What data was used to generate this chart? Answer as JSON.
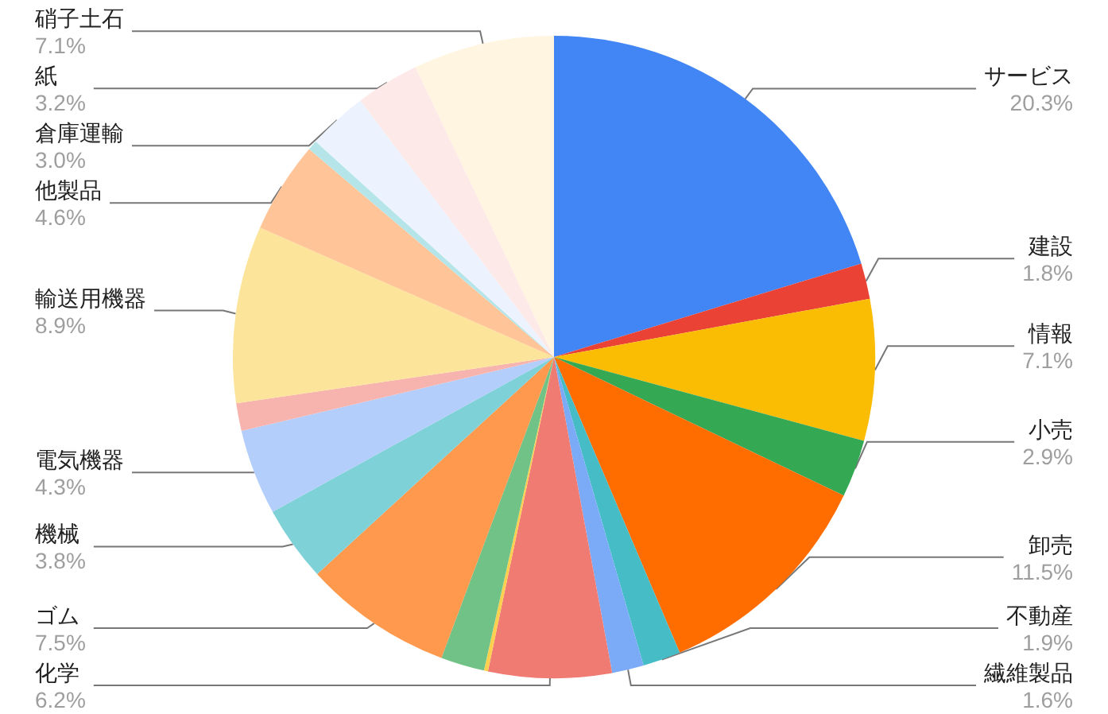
{
  "chart_data": {
    "type": "pie",
    "categories": [
      "サービス",
      "建設",
      "情報",
      "小売",
      "卸売",
      "不動産",
      "繊維製品",
      "化学",
      null,
      null,
      "ゴム",
      "機械",
      "電気機器",
      null,
      "輸送用機器",
      "他製品",
      null,
      "倉庫運輸",
      "紙",
      "硝子土石"
    ],
    "values": [
      20.3,
      1.8,
      7.1,
      2.9,
      11.5,
      1.9,
      1.6,
      6.2,
      0.2,
      2.2,
      7.5,
      3.8,
      4.3,
      1.4,
      8.9,
      4.6,
      0.5,
      3.0,
      3.2,
      7.1
    ],
    "value_labels": [
      "20.3%",
      "1.8%",
      "7.1%",
      "2.9%",
      "11.5%",
      "1.9%",
      "1.6%",
      "6.2%",
      null,
      null,
      "7.5%",
      "3.8%",
      "4.3%",
      null,
      "8.9%",
      "4.6%",
      null,
      "3.0%",
      "3.2%",
      "7.1%"
    ],
    "colors": [
      "#4285f4",
      "#ea4335",
      "#fbbc04",
      "#34a853",
      "#ff6d01",
      "#46bdc6",
      "#7baaf7",
      "#f07b72",
      "#fcd04f",
      "#71c287",
      "#ff994d",
      "#7ed1d7",
      "#b3cefb",
      "#f7b4ae",
      "#fde49b",
      "#ffc599",
      "#b5e5e8",
      "#ecf3fe",
      "#fde9e7",
      "#fff5e0"
    ],
    "legend": false
  }
}
